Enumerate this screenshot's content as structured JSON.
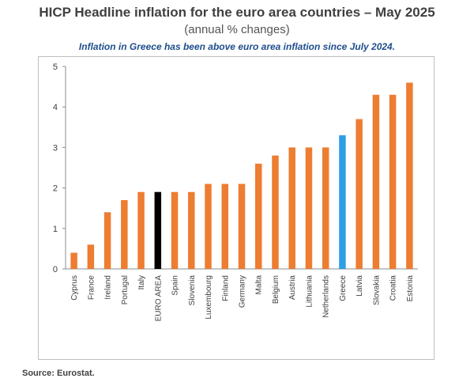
{
  "header": {
    "title": "HICP Headline inflation for the euro area countries – May 2025",
    "subtitle": "(annual % changes)",
    "note": "Inflation in Greece has been above euro area inflation since July 2024."
  },
  "footer": {
    "source": "Source: Eurostat."
  },
  "colors": {
    "default_bar": "#ed7d31",
    "euro_area_bar": "#000000",
    "greece_bar": "#2e9fe6"
  },
  "chart_data": {
    "type": "bar",
    "categories": [
      "Cyprus",
      "France",
      "Ireland",
      "Portugal",
      "Italy",
      "EURO AREA",
      "Spain",
      "Slovenia",
      "Luxembourg",
      "Finland",
      "Germany",
      "Malta",
      "Belgium",
      "Austria",
      "Lithuania",
      "Netherlands",
      "Greece",
      "Latvia",
      "Slovakia",
      "Croatia",
      "Estonia"
    ],
    "values": [
      0.4,
      0.6,
      1.4,
      1.7,
      1.9,
      1.9,
      1.9,
      1.9,
      2.1,
      2.1,
      2.1,
      2.6,
      2.8,
      3.0,
      3.0,
      3.0,
      3.3,
      3.7,
      4.3,
      4.3,
      4.6
    ],
    "highlight": {
      "EURO AREA": "#000000",
      "Greece": "#2e9fe6"
    },
    "ylim": [
      0,
      5
    ],
    "yticks": [
      0,
      1,
      2,
      3,
      4,
      5
    ],
    "grid": false,
    "xlabel": "",
    "ylabel": ""
  }
}
